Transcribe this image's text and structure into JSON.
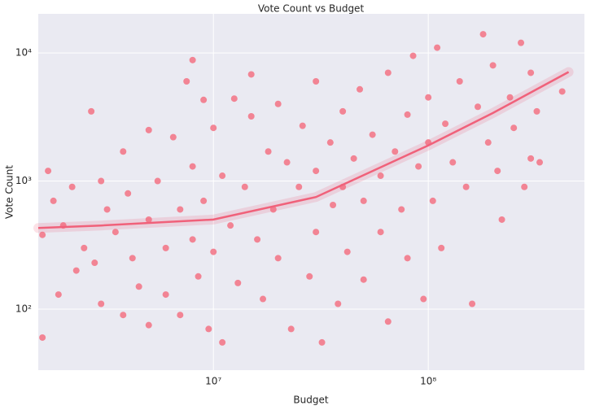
{
  "chart_data": {
    "type": "scatter",
    "title": "Vote Count vs Budget",
    "x_label": "Budget",
    "y_label": "Vote Count",
    "x_scale": "log",
    "y_scale": "log",
    "grid": true,
    "color": "#f37284",
    "line_color": "#f0617a",
    "xlim": [
      1530000,
      533000000
    ],
    "ylim": [
      33.4,
      20200
    ],
    "xticks": [
      {
        "value": 10000000,
        "label": "10⁷"
      },
      {
        "value": 100000000,
        "label": "10⁸"
      }
    ],
    "yticks": [
      {
        "value": 100,
        "label": "10²"
      },
      {
        "value": 1000,
        "label": "10³"
      },
      {
        "value": 10000,
        "label": "10⁴"
      }
    ],
    "x": [
      1600000,
      1600000,
      1700000,
      1800000,
      1900000,
      2000000,
      2200000,
      2300000,
      2500000,
      2700000,
      2800000,
      3000000,
      3000000,
      3200000,
      3500000,
      3800000,
      3800000,
      4000000,
      4200000,
      4500000,
      5000000,
      5000000,
      5000000,
      5500000,
      6000000,
      6000000,
      6500000,
      7000000,
      7000000,
      7500000,
      8000000,
      8000000,
      8500000,
      9000000,
      9000000,
      9500000,
      10000000,
      10000000,
      8000000,
      11000000,
      11000000,
      12000000,
      12500000,
      13000000,
      14000000,
      15000000,
      15000000,
      16000000,
      17000000,
      18000000,
      19000000,
      20000000,
      20000000,
      22000000,
      23000000,
      25000000,
      26000000,
      28000000,
      30000000,
      30000000,
      30000000,
      32000000,
      35000000,
      36000000,
      38000000,
      40000000,
      40000000,
      42000000,
      45000000,
      48000000,
      50000000,
      50000000,
      55000000,
      60000000,
      60000000,
      65000000,
      65000000,
      70000000,
      75000000,
      80000000,
      80000000,
      85000000,
      90000000,
      95000000,
      100000000,
      100000000,
      105000000,
      110000000,
      115000000,
      120000000,
      130000000,
      140000000,
      150000000,
      160000000,
      170000000,
      180000000,
      190000000,
      200000000,
      210000000,
      220000000,
      240000000,
      250000000,
      270000000,
      280000000,
      300000000,
      300000000,
      320000000,
      330000000,
      420000000
    ],
    "values": [
      60,
      380,
      1200,
      700,
      130,
      450,
      900,
      200,
      300,
      3500,
      230,
      1000,
      110,
      600,
      400,
      1700,
      90,
      800,
      250,
      150,
      2500,
      500,
      75,
      1000,
      300,
      130,
      2200,
      600,
      90,
      6000,
      1300,
      350,
      180,
      4300,
      700,
      70,
      2600,
      280,
      8800,
      1100,
      55,
      450,
      4400,
      160,
      900,
      3200,
      6800,
      350,
      120,
      1700,
      600,
      250,
      4000,
      1400,
      70,
      900,
      2700,
      180,
      6000,
      1200,
      400,
      55,
      2000,
      650,
      110,
      3500,
      900,
      280,
      1500,
      5200,
      700,
      170,
      2300,
      1100,
      400,
      7000,
      80,
      1700,
      600,
      3300,
      250,
      9500,
      1300,
      120,
      4500,
      2000,
      700,
      11000,
      300,
      2800,
      1400,
      6000,
      900,
      110,
      3800,
      14000,
      2000,
      8000,
      1200,
      500,
      4500,
      2600,
      12000,
      900,
      7000,
      1500,
      3500,
      1400,
      5000
    ],
    "fit": {
      "x": [
        1530000,
        3000000,
        10000000,
        30000000,
        100000000,
        200000000,
        450000000
      ],
      "values": [
        430,
        450,
        500,
        750,
        1900,
        3400,
        7100
      ]
    }
  }
}
